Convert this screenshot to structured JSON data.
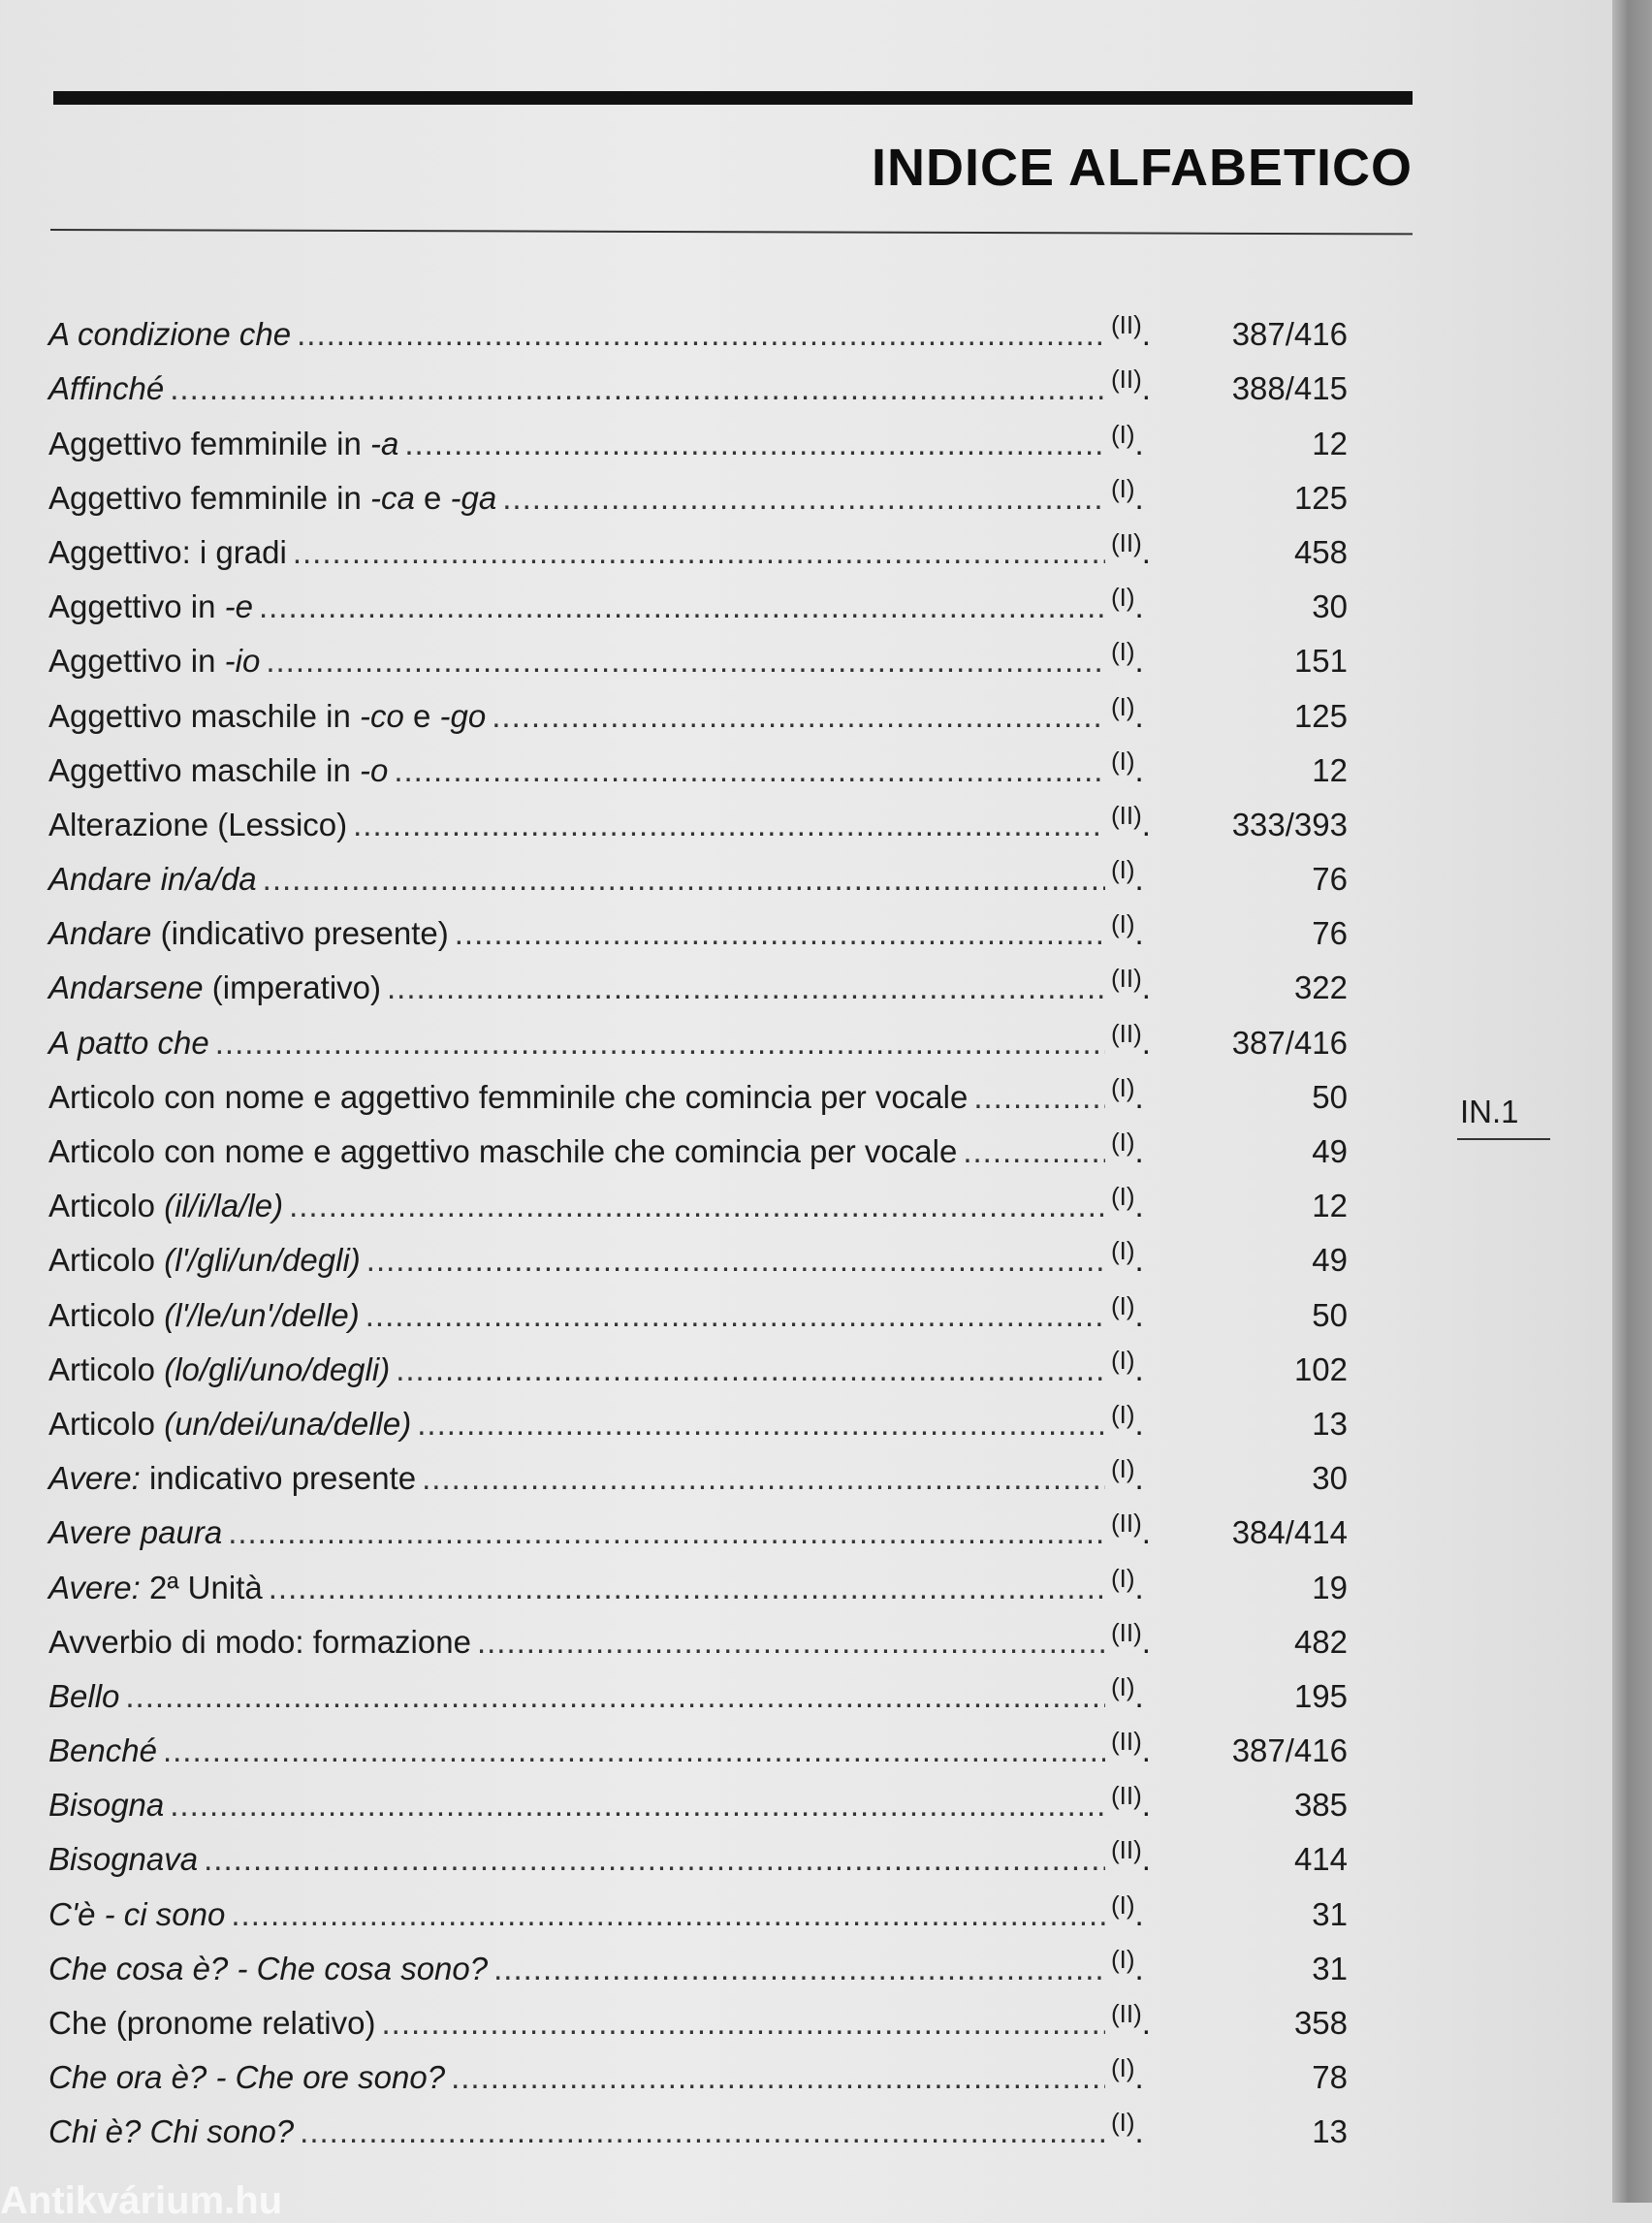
{
  "header": {
    "title": "INDICE ALFABETICO"
  },
  "page_number": "IN.1",
  "watermark": "Antikvárium.hu",
  "entries": [
    {
      "parts": [
        {
          "t": "A condizione che",
          "i": true
        }
      ],
      "vol": "(II)",
      "page": "387/416"
    },
    {
      "parts": [
        {
          "t": "Affinché",
          "i": true
        }
      ],
      "vol": "(II)",
      "page": "388/415"
    },
    {
      "parts": [
        {
          "t": "Aggettivo femminile in ",
          "i": false
        },
        {
          "t": "-a",
          "i": true
        }
      ],
      "vol": "(I)",
      "page": "12"
    },
    {
      "parts": [
        {
          "t": "Aggettivo femminile in ",
          "i": false
        },
        {
          "t": "-ca",
          "i": true
        },
        {
          "t": " e ",
          "i": false
        },
        {
          "t": "-ga",
          "i": true
        }
      ],
      "vol": "(I)",
      "page": "125"
    },
    {
      "parts": [
        {
          "t": "Aggettivo: i gradi",
          "i": false
        }
      ],
      "vol": "(II)",
      "page": "458"
    },
    {
      "parts": [
        {
          "t": "Aggettivo in ",
          "i": false
        },
        {
          "t": "-e",
          "i": true
        }
      ],
      "vol": "(I)",
      "page": "30"
    },
    {
      "parts": [
        {
          "t": "Aggettivo in ",
          "i": false
        },
        {
          "t": "-io",
          "i": true
        }
      ],
      "vol": "(I)",
      "page": "151"
    },
    {
      "parts": [
        {
          "t": "Aggettivo maschile in ",
          "i": false
        },
        {
          "t": "-co",
          "i": true
        },
        {
          "t": " e ",
          "i": false
        },
        {
          "t": "-go",
          "i": true
        }
      ],
      "vol": "(I)",
      "page": "125"
    },
    {
      "parts": [
        {
          "t": "Aggettivo maschile in ",
          "i": false
        },
        {
          "t": "-o",
          "i": true
        }
      ],
      "vol": "(I)",
      "page": "12"
    },
    {
      "parts": [
        {
          "t": "Alterazione (Lessico)",
          "i": false
        }
      ],
      "vol": "(II)",
      "page": "333/393"
    },
    {
      "parts": [
        {
          "t": "Andare in/a/da",
          "i": true
        }
      ],
      "vol": "(I)",
      "page": "76"
    },
    {
      "parts": [
        {
          "t": "Andare",
          "i": true
        },
        {
          "t": " (indicativo presente)",
          "i": false
        }
      ],
      "vol": "(I)",
      "page": "76"
    },
    {
      "parts": [
        {
          "t": "Andarsene",
          "i": true
        },
        {
          "t": " (imperativo)",
          "i": false
        }
      ],
      "vol": "(II)",
      "page": "322"
    },
    {
      "parts": [
        {
          "t": "A patto che",
          "i": true
        }
      ],
      "vol": "(II)",
      "page": "387/416"
    },
    {
      "parts": [
        {
          "t": "Articolo con nome e aggettivo femminile che comincia per vocale",
          "i": false
        }
      ],
      "vol": "(I)",
      "page": "50"
    },
    {
      "parts": [
        {
          "t": "Articolo con nome e aggettivo maschile che comincia per vocale",
          "i": false
        }
      ],
      "vol": "(I)",
      "page": "49"
    },
    {
      "parts": [
        {
          "t": "Articolo ",
          "i": false
        },
        {
          "t": "(il/i/la/le)",
          "i": true
        }
      ],
      "vol": "(I)",
      "page": "12"
    },
    {
      "parts": [
        {
          "t": "Articolo ",
          "i": false
        },
        {
          "t": "(l'/gli/un/degli)",
          "i": true
        }
      ],
      "vol": "(I)",
      "page": "49"
    },
    {
      "parts": [
        {
          "t": "Articolo ",
          "i": false
        },
        {
          "t": "(l'/le/un'/delle)",
          "i": true
        }
      ],
      "vol": "(I)",
      "page": "50"
    },
    {
      "parts": [
        {
          "t": "Articolo ",
          "i": false
        },
        {
          "t": "(lo/gli/uno/degli)",
          "i": true
        }
      ],
      "vol": "(I)",
      "page": "102"
    },
    {
      "parts": [
        {
          "t": "Articolo ",
          "i": false
        },
        {
          "t": "(un/dei/una/delle)",
          "i": true
        }
      ],
      "vol": "(I)",
      "page": "13"
    },
    {
      "parts": [
        {
          "t": "Avere:",
          "i": true
        },
        {
          "t": " indicativo presente",
          "i": false
        }
      ],
      "vol": "(I)",
      "page": "30"
    },
    {
      "parts": [
        {
          "t": "Avere paura",
          "i": true
        }
      ],
      "vol": "(II)",
      "page": "384/414"
    },
    {
      "parts": [
        {
          "t": "Avere:",
          "i": true
        },
        {
          "t": " 2ª Unità",
          "i": false
        }
      ],
      "vol": "(I)",
      "page": "19"
    },
    {
      "parts": [
        {
          "t": "Avverbio di modo: formazione",
          "i": false
        }
      ],
      "vol": "(II)",
      "page": "482"
    },
    {
      "parts": [
        {
          "t": "Bello",
          "i": true
        }
      ],
      "vol": "(I)",
      "page": "195"
    },
    {
      "parts": [
        {
          "t": "Benché",
          "i": true
        }
      ],
      "vol": "(II)",
      "page": "387/416"
    },
    {
      "parts": [
        {
          "t": "Bisogna",
          "i": true
        }
      ],
      "vol": "(II)",
      "page": "385"
    },
    {
      "parts": [
        {
          "t": "Bisognava",
          "i": true
        }
      ],
      "vol": "(II)",
      "page": "414"
    },
    {
      "parts": [
        {
          "t": "C'è - ci sono",
          "i": true
        }
      ],
      "vol": "(I)",
      "page": "31"
    },
    {
      "parts": [
        {
          "t": "Che cosa è? - Che cosa sono?",
          "i": true
        }
      ],
      "vol": "(I)",
      "page": "31"
    },
    {
      "parts": [
        {
          "t": "Che",
          "i": false
        },
        {
          "t": " (pronome relativo)",
          "i": false
        }
      ],
      "vol": "(II)",
      "page": "358"
    },
    {
      "parts": [
        {
          "t": "Che ora è? - Che ore sono?",
          "i": true
        }
      ],
      "vol": "(I)",
      "page": "78"
    },
    {
      "parts": [
        {
          "t": "Chi è? Chi sono?",
          "i": true
        }
      ],
      "vol": "(I)",
      "page": "13"
    }
  ]
}
